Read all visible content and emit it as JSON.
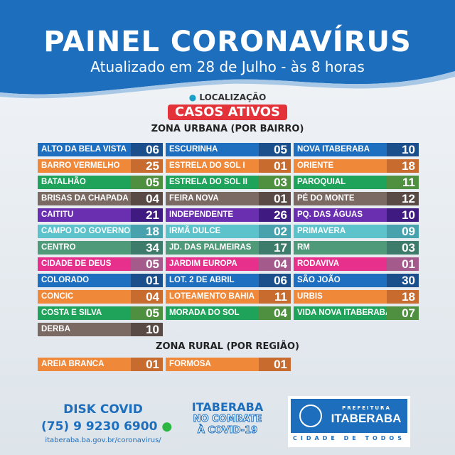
{
  "header": {
    "title": "PAINEL CORONAVÍRUS",
    "subtitle": "Atualizado em 28 de Julho - às 8 horas"
  },
  "location_label": "LOCALIZAÇÃO",
  "active_label": "CASOS ATIVOS",
  "urban_title": "ZONA URBANA (POR BAIRRO)",
  "rural_title": "ZONA RURAL (POR REGIÃO)",
  "colors": [
    [
      "#1e6fc0",
      "#1b4f8c"
    ],
    [
      "#f0883a",
      "#c76b2e"
    ],
    [
      "#1fa35a",
      "#4f9040"
    ],
    [
      "#7b6a63",
      "#5a4a45"
    ],
    [
      "#6a2fb0",
      "#3f1a80"
    ],
    [
      "#5cc3cc",
      "#48a2ad"
    ],
    [
      "#4f9a78",
      "#3d7c6a"
    ],
    [
      "#e6308c",
      "#a55a8c"
    ]
  ],
  "urban": [
    [
      [
        "ALTO DA BELA VISTA",
        "06"
      ],
      [
        "ESCURINHA",
        "05"
      ],
      [
        "NOVA ITABERABA",
        "10"
      ]
    ],
    [
      [
        "BARRO VERMELHO",
        "25"
      ],
      [
        "ESTRELA DO SOL I",
        "01"
      ],
      [
        "ORIENTE",
        "18"
      ]
    ],
    [
      [
        "BATALHÃO",
        "05"
      ],
      [
        "ESTRELA DO SOL II",
        "03"
      ],
      [
        "PAROQUIAL",
        "11"
      ]
    ],
    [
      [
        "BRISAS DA CHAPADA",
        "04"
      ],
      [
        "FEIRA NOVA",
        "01"
      ],
      [
        "PÉ DO MONTE",
        "12"
      ]
    ],
    [
      [
        "CAITITU",
        "21"
      ],
      [
        "INDEPENDENTE",
        "26"
      ],
      [
        "PQ. DAS ÁGUAS",
        "10"
      ]
    ],
    [
      [
        "CAMPO DO GOVERNO",
        "18"
      ],
      [
        "IRMÃ DULCE",
        "02"
      ],
      [
        "PRIMAVERA",
        "09"
      ]
    ],
    [
      [
        "CENTRO",
        "34"
      ],
      [
        "JD. DAS PALMEIRAS",
        "17"
      ],
      [
        "RM",
        "03"
      ]
    ],
    [
      [
        "CIDADE DE DEUS",
        "05"
      ],
      [
        "JARDIM EUROPA",
        "04"
      ],
      [
        "RODAVIVA",
        "01"
      ]
    ],
    [
      [
        "COLORADO",
        "01"
      ],
      [
        "LOT. 2 DE ABRIL",
        "06"
      ],
      [
        "SÃO JOÃO",
        "30"
      ]
    ],
    [
      [
        "CONCIC",
        "04"
      ],
      [
        "LOTEAMENTO BAHIA",
        "11"
      ],
      [
        "URBIS",
        "18"
      ]
    ],
    [
      [
        "COSTA E SILVA",
        "05"
      ],
      [
        "MORADA DO SOL",
        "04"
      ],
      [
        "VIDA NOVA ITABERABA",
        "07"
      ]
    ],
    [
      [
        "DERBA",
        "10"
      ]
    ]
  ],
  "rural": [
    [
      "AREIA  BRANCA",
      "01"
    ],
    [
      "FORMOSA",
      "01"
    ]
  ],
  "footer": {
    "disk": "DISK COVID",
    "phone": "(75) 9 9230 6900",
    "url": "itaberaba.ba.gov.br/coronavirus/",
    "campaign_1": "ITABERABA",
    "campaign_2": "NO COMBATE",
    "campaign_3": "À COVID-19",
    "logo_pre": "PREFEITURA",
    "logo_name": "ITABERABA",
    "logo_motto": "CIDADE DE TODOS"
  }
}
